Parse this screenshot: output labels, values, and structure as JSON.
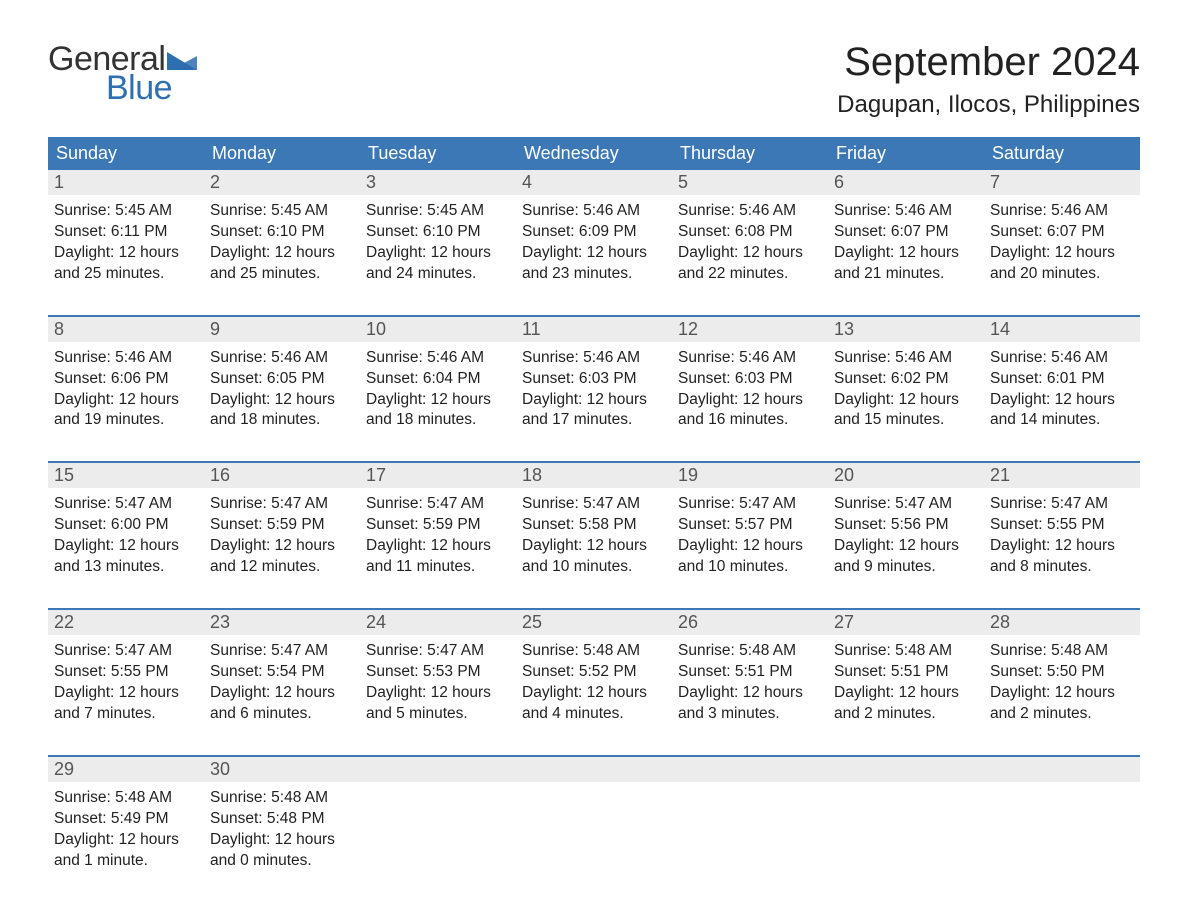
{
  "logo": {
    "word1": "General",
    "word2": "Blue",
    "tri_color": "#2e6fb0",
    "text_color": "#333"
  },
  "header": {
    "month_title": "September 2024",
    "location": "Dagupan, Ilocos, Philippines"
  },
  "colors": {
    "header_bg": "#3b78b5",
    "header_text": "#ffffff",
    "daynum_bg": "#ececec",
    "daynum_text": "#555555",
    "body_text": "#222222",
    "week_border": "#3b78b5",
    "page_bg": "#ffffff"
  },
  "typography": {
    "month_title_pt": 40,
    "location_pt": 24,
    "weekday_pt": 18,
    "daynum_pt": 18,
    "body_pt": 15.5,
    "logo_pt": 34,
    "font_family": "Arial"
  },
  "weekdays": [
    "Sunday",
    "Monday",
    "Tuesday",
    "Wednesday",
    "Thursday",
    "Friday",
    "Saturday"
  ],
  "weeks": [
    [
      {
        "n": "1",
        "sunrise": "Sunrise: 5:45 AM",
        "sunset": "Sunset: 6:11 PM",
        "daylight": "Daylight: 12 hours and 25 minutes."
      },
      {
        "n": "2",
        "sunrise": "Sunrise: 5:45 AM",
        "sunset": "Sunset: 6:10 PM",
        "daylight": "Daylight: 12 hours and 25 minutes."
      },
      {
        "n": "3",
        "sunrise": "Sunrise: 5:45 AM",
        "sunset": "Sunset: 6:10 PM",
        "daylight": "Daylight: 12 hours and 24 minutes."
      },
      {
        "n": "4",
        "sunrise": "Sunrise: 5:46 AM",
        "sunset": "Sunset: 6:09 PM",
        "daylight": "Daylight: 12 hours and 23 minutes."
      },
      {
        "n": "5",
        "sunrise": "Sunrise: 5:46 AM",
        "sunset": "Sunset: 6:08 PM",
        "daylight": "Daylight: 12 hours and 22 minutes."
      },
      {
        "n": "6",
        "sunrise": "Sunrise: 5:46 AM",
        "sunset": "Sunset: 6:07 PM",
        "daylight": "Daylight: 12 hours and 21 minutes."
      },
      {
        "n": "7",
        "sunrise": "Sunrise: 5:46 AM",
        "sunset": "Sunset: 6:07 PM",
        "daylight": "Daylight: 12 hours and 20 minutes."
      }
    ],
    [
      {
        "n": "8",
        "sunrise": "Sunrise: 5:46 AM",
        "sunset": "Sunset: 6:06 PM",
        "daylight": "Daylight: 12 hours and 19 minutes."
      },
      {
        "n": "9",
        "sunrise": "Sunrise: 5:46 AM",
        "sunset": "Sunset: 6:05 PM",
        "daylight": "Daylight: 12 hours and 18 minutes."
      },
      {
        "n": "10",
        "sunrise": "Sunrise: 5:46 AM",
        "sunset": "Sunset: 6:04 PM",
        "daylight": "Daylight: 12 hours and 18 minutes."
      },
      {
        "n": "11",
        "sunrise": "Sunrise: 5:46 AM",
        "sunset": "Sunset: 6:03 PM",
        "daylight": "Daylight: 12 hours and 17 minutes."
      },
      {
        "n": "12",
        "sunrise": "Sunrise: 5:46 AM",
        "sunset": "Sunset: 6:03 PM",
        "daylight": "Daylight: 12 hours and 16 minutes."
      },
      {
        "n": "13",
        "sunrise": "Sunrise: 5:46 AM",
        "sunset": "Sunset: 6:02 PM",
        "daylight": "Daylight: 12 hours and 15 minutes."
      },
      {
        "n": "14",
        "sunrise": "Sunrise: 5:46 AM",
        "sunset": "Sunset: 6:01 PM",
        "daylight": "Daylight: 12 hours and 14 minutes."
      }
    ],
    [
      {
        "n": "15",
        "sunrise": "Sunrise: 5:47 AM",
        "sunset": "Sunset: 6:00 PM",
        "daylight": "Daylight: 12 hours and 13 minutes."
      },
      {
        "n": "16",
        "sunrise": "Sunrise: 5:47 AM",
        "sunset": "Sunset: 5:59 PM",
        "daylight": "Daylight: 12 hours and 12 minutes."
      },
      {
        "n": "17",
        "sunrise": "Sunrise: 5:47 AM",
        "sunset": "Sunset: 5:59 PM",
        "daylight": "Daylight: 12 hours and 11 minutes."
      },
      {
        "n": "18",
        "sunrise": "Sunrise: 5:47 AM",
        "sunset": "Sunset: 5:58 PM",
        "daylight": "Daylight: 12 hours and 10 minutes."
      },
      {
        "n": "19",
        "sunrise": "Sunrise: 5:47 AM",
        "sunset": "Sunset: 5:57 PM",
        "daylight": "Daylight: 12 hours and 10 minutes."
      },
      {
        "n": "20",
        "sunrise": "Sunrise: 5:47 AM",
        "sunset": "Sunset: 5:56 PM",
        "daylight": "Daylight: 12 hours and 9 minutes."
      },
      {
        "n": "21",
        "sunrise": "Sunrise: 5:47 AM",
        "sunset": "Sunset: 5:55 PM",
        "daylight": "Daylight: 12 hours and 8 minutes."
      }
    ],
    [
      {
        "n": "22",
        "sunrise": "Sunrise: 5:47 AM",
        "sunset": "Sunset: 5:55 PM",
        "daylight": "Daylight: 12 hours and 7 minutes."
      },
      {
        "n": "23",
        "sunrise": "Sunrise: 5:47 AM",
        "sunset": "Sunset: 5:54 PM",
        "daylight": "Daylight: 12 hours and 6 minutes."
      },
      {
        "n": "24",
        "sunrise": "Sunrise: 5:47 AM",
        "sunset": "Sunset: 5:53 PM",
        "daylight": "Daylight: 12 hours and 5 minutes."
      },
      {
        "n": "25",
        "sunrise": "Sunrise: 5:48 AM",
        "sunset": "Sunset: 5:52 PM",
        "daylight": "Daylight: 12 hours and 4 minutes."
      },
      {
        "n": "26",
        "sunrise": "Sunrise: 5:48 AM",
        "sunset": "Sunset: 5:51 PM",
        "daylight": "Daylight: 12 hours and 3 minutes."
      },
      {
        "n": "27",
        "sunrise": "Sunrise: 5:48 AM",
        "sunset": "Sunset: 5:51 PM",
        "daylight": "Daylight: 12 hours and 2 minutes."
      },
      {
        "n": "28",
        "sunrise": "Sunrise: 5:48 AM",
        "sunset": "Sunset: 5:50 PM",
        "daylight": "Daylight: 12 hours and 2 minutes."
      }
    ],
    [
      {
        "n": "29",
        "sunrise": "Sunrise: 5:48 AM",
        "sunset": "Sunset: 5:49 PM",
        "daylight": "Daylight: 12 hours and 1 minute."
      },
      {
        "n": "30",
        "sunrise": "Sunrise: 5:48 AM",
        "sunset": "Sunset: 5:48 PM",
        "daylight": "Daylight: 12 hours and 0 minutes."
      },
      null,
      null,
      null,
      null,
      null
    ]
  ]
}
